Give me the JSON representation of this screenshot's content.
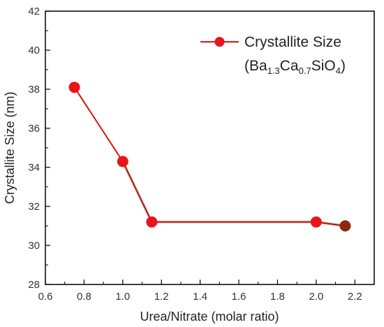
{
  "chart_data": {
    "type": "line",
    "x": [
      0.75,
      1.0,
      1.15,
      2.0,
      2.15
    ],
    "series": [
      {
        "name": "Crystallite Size",
        "values": [
          38.1,
          34.3,
          31.2,
          31.2,
          31.0
        ]
      }
    ],
    "xlabel": "Urea/Nitrate (molar ratio)",
    "ylabel": "Crystallite Size (nm)",
    "xlim": [
      0.6,
      2.3
    ],
    "ylim": [
      28,
      42
    ],
    "x_ticks": [
      "0.6",
      "0.8",
      "1.0",
      "1.2",
      "1.4",
      "1.6",
      "1.8",
      "2.0",
      "2.2"
    ],
    "y_ticks": [
      "28",
      "30",
      "32",
      "34",
      "36",
      "38",
      "40",
      "42"
    ],
    "legend": {
      "position": "top-right",
      "line1": "Crystallite Size",
      "formula": [
        {
          "text": "(Ba",
          "sub": false
        },
        {
          "text": "1.3",
          "sub": true
        },
        {
          "text": "Ca",
          "sub": false
        },
        {
          "text": "0.7",
          "sub": true
        },
        {
          "text": "SiO",
          "sub": false
        },
        {
          "text": "4",
          "sub": true
        },
        {
          "text": ")",
          "sub": false
        }
      ]
    },
    "grid": false,
    "colors": {
      "line": "#dd1111",
      "marker": "#e8141a",
      "marker_dark": "#8a2a10"
    }
  }
}
